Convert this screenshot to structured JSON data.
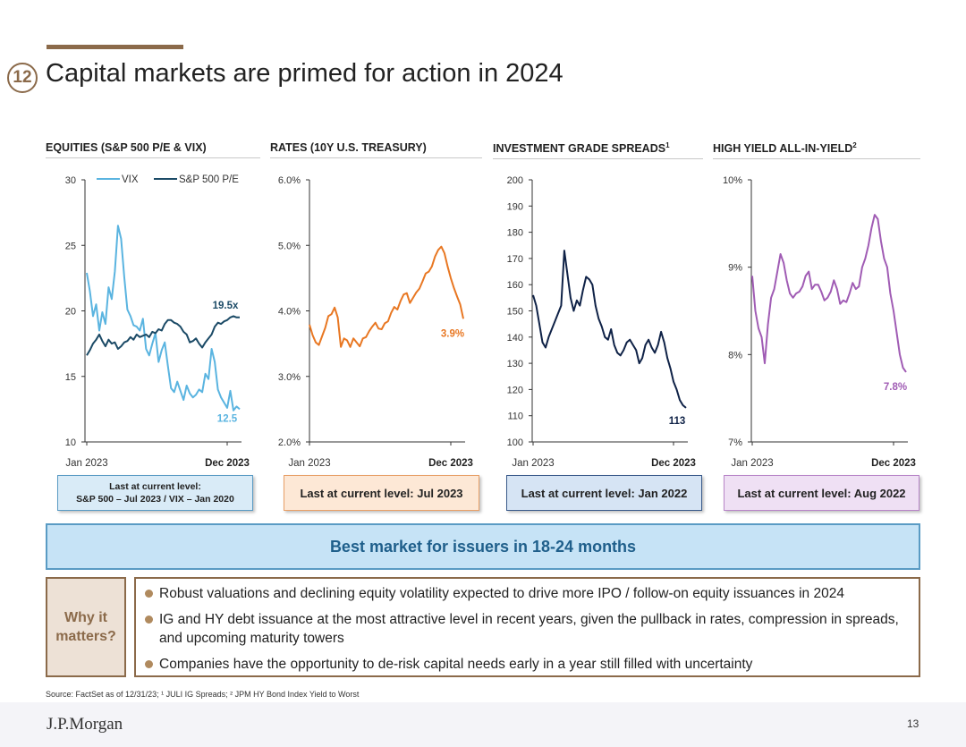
{
  "slide": {
    "number": "12",
    "title": "Capital markets are primed for action in 2024",
    "page": "13",
    "logo": "J.P.Morgan",
    "source": "Source: FactSet as of 12/31/23; ¹ JULI IG Spreads; ² JPM HY Bond Index Yield to Worst"
  },
  "chart_titles": {
    "equities": "EQUITIES (S&P 500 P/E & VIX)",
    "rates": "RATES (10Y U.S. TREASURY)",
    "ig": "INVESTMENT GRADE SPREADS",
    "ig_sup": "1",
    "hy": "HIGH YIELD ALL-IN-YIELD",
    "hy_sup": "2"
  },
  "level_boxes": {
    "equities_line1": "Last at current level:",
    "equities_line2": "S&P 500 – Jul 2023 / VIX – Jan 2020",
    "rates": "Last at current level: Jul 2023",
    "ig": "Last at current level: Jan 2022",
    "hy": "Last at current level: Aug 2022"
  },
  "banner": "Best market for issuers in 18-24 months",
  "why": {
    "line1": "Why it",
    "line2": "matters?"
  },
  "bullets": [
    "Robust valuations and declining equity volatility expected to drive more IPO / follow-on equity issuances in 2024",
    "IG and HY debt issuance at the most attractive level in recent years, given the pullback in rates, compression in spreads, and upcoming maturity towers",
    "Companies have the opportunity to de-risk capital needs early in a year still filled with uncertainty"
  ],
  "colors": {
    "vix": "#5ab4e0",
    "sp500": "#1b4a66",
    "rates": "#e87722",
    "ig": "#0f2247",
    "hy": "#a05cb4"
  },
  "chart_data": [
    {
      "id": "equities",
      "type": "line",
      "title": "EQUITIES (S&P 500 P/E & VIX)",
      "x_start": "Jan 2023",
      "x_end": "Dec 2023",
      "ylim": [
        10,
        30
      ],
      "yticks": [
        10,
        15,
        20,
        25,
        30
      ],
      "ytick_labels": [
        "10",
        "15",
        "20",
        "25",
        "30"
      ],
      "legend": "top",
      "series": [
        {
          "name": "VIX",
          "color": "#5ab4e0",
          "end_label": "12.5",
          "values": [
            22.9,
            21.5,
            19.6,
            20.5,
            18.5,
            19.9,
            19.0,
            21.8,
            20.9,
            23.0,
            26.5,
            25.5,
            22.6,
            20.1,
            19.6,
            18.9,
            18.8,
            18.5,
            19.4,
            17.1,
            16.6,
            17.5,
            18.3,
            16.1,
            17.0,
            17.6,
            15.8,
            14.1,
            13.8,
            14.6,
            13.9,
            13.2,
            14.3,
            13.7,
            13.4,
            13.6,
            14.0,
            13.8,
            15.2,
            14.8,
            17.1,
            16.1,
            14.0,
            13.4,
            13.0,
            12.6,
            13.9,
            12.4,
            12.7,
            12.5
          ]
        },
        {
          "name": "S&P 500 P/E",
          "color": "#1b4a66",
          "end_label": "19.5x",
          "values": [
            16.6,
            17.0,
            17.5,
            17.8,
            18.2,
            17.7,
            17.3,
            17.8,
            17.5,
            17.6,
            17.1,
            17.3,
            17.6,
            17.7,
            18.0,
            17.8,
            18.2,
            18.0,
            18.1,
            18.2,
            18.0,
            18.4,
            18.3,
            18.6,
            18.5,
            19.0,
            19.3,
            19.3,
            19.1,
            19.0,
            18.8,
            18.4,
            18.2,
            17.6,
            17.7,
            17.9,
            17.5,
            17.2,
            17.6,
            17.9,
            18.2,
            18.8,
            19.1,
            19.0,
            19.2,
            19.3,
            19.5,
            19.6,
            19.5,
            19.5
          ]
        }
      ]
    },
    {
      "id": "rates",
      "type": "line",
      "title": "RATES (10Y U.S. TREASURY)",
      "x_start": "Jan 2023",
      "x_end": "Dec 2023",
      "ylim": [
        2.0,
        6.0
      ],
      "yticks": [
        2.0,
        3.0,
        4.0,
        5.0,
        6.0
      ],
      "ytick_labels": [
        "2.0%",
        "3.0%",
        "4.0%",
        "5.0%",
        "6.0%"
      ],
      "series": [
        {
          "name": "10Y U.S. Treasury",
          "color": "#e87722",
          "end_label": "3.9%",
          "values": [
            3.79,
            3.63,
            3.52,
            3.48,
            3.61,
            3.74,
            3.92,
            3.95,
            4.05,
            3.9,
            3.45,
            3.58,
            3.55,
            3.45,
            3.58,
            3.52,
            3.46,
            3.58,
            3.6,
            3.69,
            3.76,
            3.82,
            3.73,
            3.72,
            3.81,
            3.84,
            3.97,
            4.06,
            4.02,
            4.15,
            4.25,
            4.27,
            4.12,
            4.2,
            4.28,
            4.34,
            4.45,
            4.57,
            4.6,
            4.68,
            4.83,
            4.93,
            4.98,
            4.88,
            4.68,
            4.5,
            4.35,
            4.22,
            4.1,
            3.88
          ]
        }
      ]
    },
    {
      "id": "ig",
      "type": "line",
      "title": "INVESTMENT GRADE SPREADS",
      "x_start": "Jan 2023",
      "x_end": "Dec 2023",
      "ylim": [
        100,
        200
      ],
      "yticks": [
        100,
        110,
        120,
        130,
        140,
        150,
        160,
        170,
        180,
        190,
        200
      ],
      "ytick_labels": [
        "100",
        "110",
        "120",
        "130",
        "140",
        "150",
        "160",
        "170",
        "180",
        "190",
        "200"
      ],
      "series": [
        {
          "name": "IG Spreads",
          "color": "#0f2247",
          "end_label": "113",
          "values": [
            156,
            152,
            145,
            138,
            136,
            140,
            143,
            146,
            149,
            152,
            173,
            164,
            155,
            150,
            154,
            152,
            158,
            163,
            162,
            160,
            152,
            147,
            144,
            140,
            139,
            143,
            137,
            134,
            133,
            135,
            138,
            139,
            137,
            135,
            130,
            132,
            137,
            139,
            136,
            134,
            137,
            142,
            138,
            132,
            128,
            123,
            120,
            116,
            114,
            113
          ]
        }
      ]
    },
    {
      "id": "hy",
      "type": "line",
      "title": "HIGH YIELD ALL-IN-YIELD",
      "x_start": "Jan 2023",
      "x_end": "Dec 2023",
      "ylim": [
        7,
        10
      ],
      "yticks": [
        7,
        8,
        9,
        10
      ],
      "ytick_labels": [
        "7%",
        "8%",
        "9%",
        "10%"
      ],
      "series": [
        {
          "name": "HY Yield to Worst",
          "color": "#a05cb4",
          "end_label": "7.8%",
          "values": [
            8.9,
            8.5,
            8.3,
            8.2,
            7.9,
            8.35,
            8.65,
            8.75,
            8.95,
            9.15,
            9.05,
            8.85,
            8.7,
            8.65,
            8.7,
            8.72,
            8.78,
            8.9,
            8.95,
            8.75,
            8.8,
            8.8,
            8.72,
            8.62,
            8.65,
            8.72,
            8.85,
            8.75,
            8.58,
            8.62,
            8.6,
            8.7,
            8.82,
            8.75,
            8.78,
            9.0,
            9.1,
            9.25,
            9.45,
            9.6,
            9.55,
            9.3,
            9.1,
            9.0,
            8.7,
            8.5,
            8.25,
            8.0,
            7.85,
            7.8
          ]
        }
      ]
    }
  ]
}
